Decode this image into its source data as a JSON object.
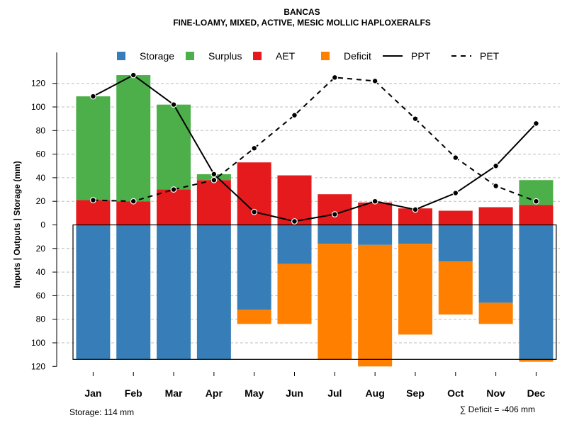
{
  "chart_data": {
    "type": "bar",
    "title": "BANCAS",
    "subtitle": "FINE-LOAMY, MIXED, ACTIVE, MESIC MOLLIC HAPLOXERALFS",
    "ylabel": "Inputs | Outputs | Storage    (mm)",
    "ylim": [
      -120,
      130
    ],
    "y_ticks": [
      {
        "value": 120,
        "label": "120"
      },
      {
        "value": 100,
        "label": "100"
      },
      {
        "value": 80,
        "label": "80"
      },
      {
        "value": 60,
        "label": "60"
      },
      {
        "value": 40,
        "label": "40"
      },
      {
        "value": 20,
        "label": "20"
      },
      {
        "value": 0,
        "label": "0"
      },
      {
        "value": -20,
        "label": "20"
      },
      {
        "value": -40,
        "label": "40"
      },
      {
        "value": -60,
        "label": "60"
      },
      {
        "value": -80,
        "label": "80"
      },
      {
        "value": -100,
        "label": "100"
      },
      {
        "value": -120,
        "label": "120"
      }
    ],
    "grid": true,
    "categories": [
      "Jan",
      "Feb",
      "Mar",
      "Apr",
      "May",
      "Jun",
      "Jul",
      "Aug",
      "Sep",
      "Oct",
      "Nov",
      "Dec"
    ],
    "series": [
      {
        "name": "AET",
        "kind": "bar-up",
        "color": "#e41a1c",
        "values": [
          21,
          20,
          30,
          38,
          53,
          42,
          26,
          19,
          14,
          12,
          15,
          17
        ]
      },
      {
        "name": "Surplus",
        "kind": "bar-up-stacked",
        "color": "#4daf4a",
        "values": [
          88,
          107,
          72,
          5,
          0,
          0,
          0,
          0,
          0,
          0,
          0,
          21
        ]
      },
      {
        "name": "Storage",
        "kind": "bar-down",
        "color": "#377eb8",
        "values": [
          114,
          114,
          114,
          114,
          72,
          33,
          16,
          17,
          16,
          31,
          66,
          114
        ]
      },
      {
        "name": "Deficit",
        "kind": "bar-down-stacked",
        "color": "#ff7f00",
        "values": [
          0,
          0,
          0,
          0,
          12,
          51,
          98,
          103,
          77,
          45,
          18,
          2
        ]
      },
      {
        "name": "PPT",
        "kind": "line",
        "style": "solid",
        "color": "#000000",
        "values": [
          109,
          127,
          102,
          43,
          11,
          3,
          9,
          20,
          13,
          27,
          50,
          86
        ]
      },
      {
        "name": "PET",
        "kind": "line",
        "style": "dashed",
        "color": "#000000",
        "values": [
          21,
          20,
          30,
          38,
          65,
          93,
          125,
          122,
          90,
          57,
          33,
          20
        ]
      }
    ],
    "legend": [
      "Storage",
      "Surplus",
      "AET",
      "Deficit",
      "PPT",
      "PET"
    ],
    "legend_position": "top",
    "storage_capacity": 114,
    "annotations": {
      "storage": "Storage: 114 mm",
      "deficit": "∑ Deficit = -406 mm"
    }
  }
}
